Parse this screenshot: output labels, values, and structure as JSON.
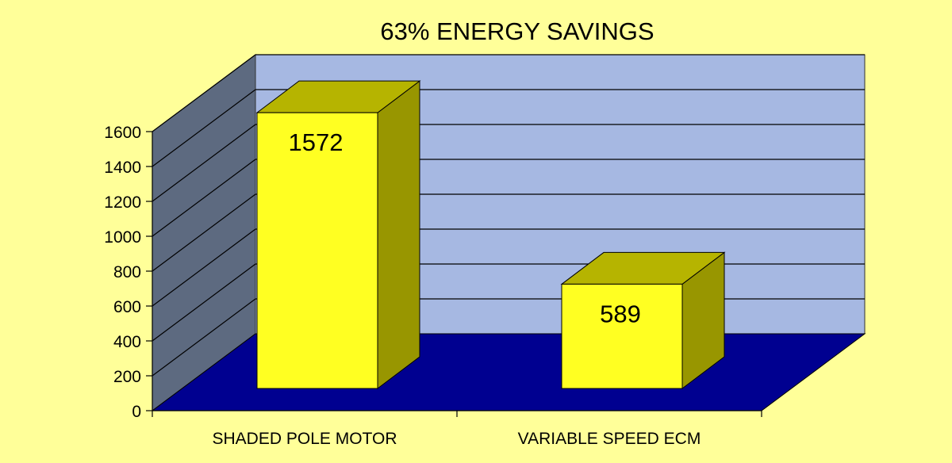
{
  "chart_data": {
    "type": "bar",
    "style": "3d-column",
    "title": "63% ENERGY SAVINGS",
    "xlabel": "",
    "ylabel": "",
    "categories": [
      "SHADED POLE MOTOR",
      "VARIABLE SPEED ECM"
    ],
    "series": [
      {
        "values": [
          1572,
          589
        ]
      }
    ],
    "data_labels": [
      "1572",
      "589"
    ],
    "ylim": [
      0,
      1600
    ],
    "yticks": [
      0,
      200,
      400,
      600,
      800,
      1000,
      1200,
      1400,
      1600
    ],
    "grid": true,
    "legend": "none",
    "colors": {
      "background": "#ffff99",
      "back_wall": "#a6b8e2",
      "side_wall": "#5d6a80",
      "floor": "#000090",
      "bar_front": "#ffff22",
      "bar_top": "#b6b400",
      "bar_side": "#989600",
      "grid": "#000000"
    }
  }
}
